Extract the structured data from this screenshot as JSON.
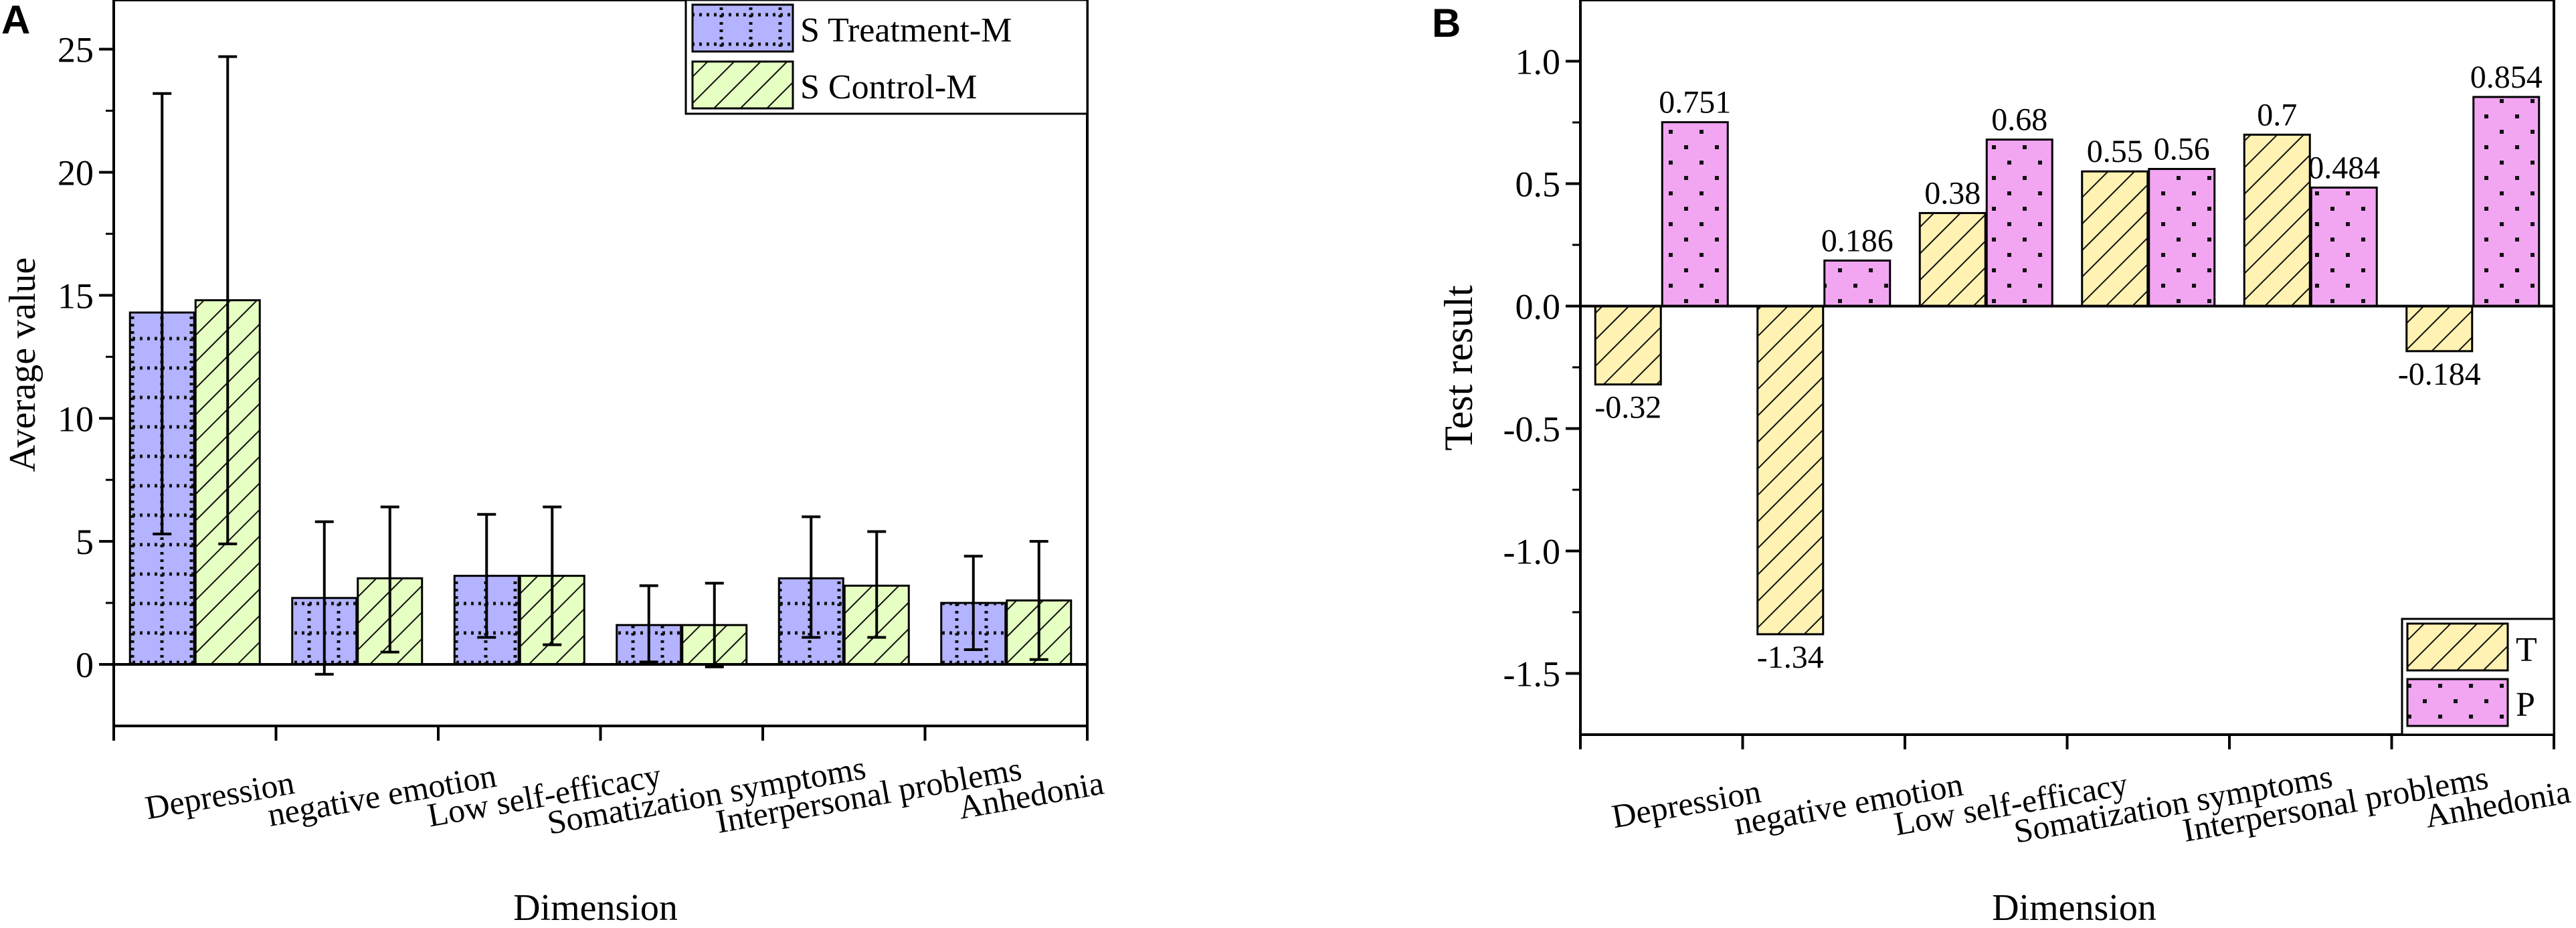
{
  "chart_data": [
    {
      "panel_label": "A",
      "type": "bar",
      "xlabel": "Dimension",
      "ylabel": "Average value",
      "ylim": [
        -2.5,
        27
      ],
      "yticks": [
        0,
        5,
        10,
        15,
        20,
        25
      ],
      "ytick_labels": [
        "0",
        "5",
        "10",
        "15",
        "20",
        "25"
      ],
      "categories": [
        "Depression",
        "negative emotion",
        "Low self-efficacy",
        "Somatization symptoms",
        "Interpersonal problems",
        "Anhedonia"
      ],
      "series": [
        {
          "name": "S  Treatment-M",
          "legend_label": "S  Treatment-M",
          "color": "#b3b3ff",
          "pattern": "dots-grid",
          "values": [
            14.3,
            2.7,
            3.6,
            1.6,
            3.5,
            2.5
          ],
          "err_low": [
            5.3,
            -0.4,
            1.1,
            0.1,
            1.1,
            0.6
          ],
          "err_high": [
            23.2,
            5.8,
            6.1,
            3.2,
            6.0,
            4.4
          ]
        },
        {
          "name": "S  Control-M",
          "legend_label": "S  Control-M",
          "color": "#e6ffc2",
          "pattern": "diagonal",
          "values": [
            14.8,
            3.5,
            3.6,
            1.6,
            3.2,
            2.6
          ],
          "err_low": [
            4.9,
            0.5,
            0.8,
            -0.1,
            1.1,
            0.2
          ],
          "err_high": [
            24.7,
            6.4,
            6.4,
            3.3,
            5.4,
            5.0
          ]
        }
      ],
      "legend_position": "top-right"
    },
    {
      "panel_label": "B",
      "type": "bar",
      "xlabel": "Dimension",
      "ylabel": "Test result",
      "ylim": [
        -1.75,
        1.25
      ],
      "yticks": [
        -1.5,
        -1.0,
        -0.5,
        0.0,
        0.5,
        1.0
      ],
      "ytick_labels": [
        "-1.5",
        "-1.0",
        "-0.5",
        "0.0",
        "0.5",
        "1.0"
      ],
      "categories": [
        "Depression",
        "negative emotion",
        "Low self-efficacy",
        "Somatization symptoms",
        "Interpersonal problems",
        "Anhedonia"
      ],
      "series": [
        {
          "name": "T",
          "legend_label": "T",
          "color": "#fff2b3",
          "pattern": "diagonal",
          "values": [
            -0.32,
            -1.34,
            0.38,
            0.55,
            0.7,
            -0.184
          ],
          "labels": [
            "-0.32",
            "-1.34",
            "0.38",
            "0.55",
            "0.7",
            "-0.184"
          ]
        },
        {
          "name": "P",
          "legend_label": "P",
          "color": "#f2a6f2",
          "pattern": "dots",
          "values": [
            0.751,
            0.186,
            0.68,
            0.56,
            0.484,
            0.854
          ],
          "labels": [
            "0.751",
            "0.186",
            "0.68",
            "0.56",
            "0.484",
            "0.854"
          ]
        }
      ],
      "legend_position": "bottom-right"
    }
  ]
}
